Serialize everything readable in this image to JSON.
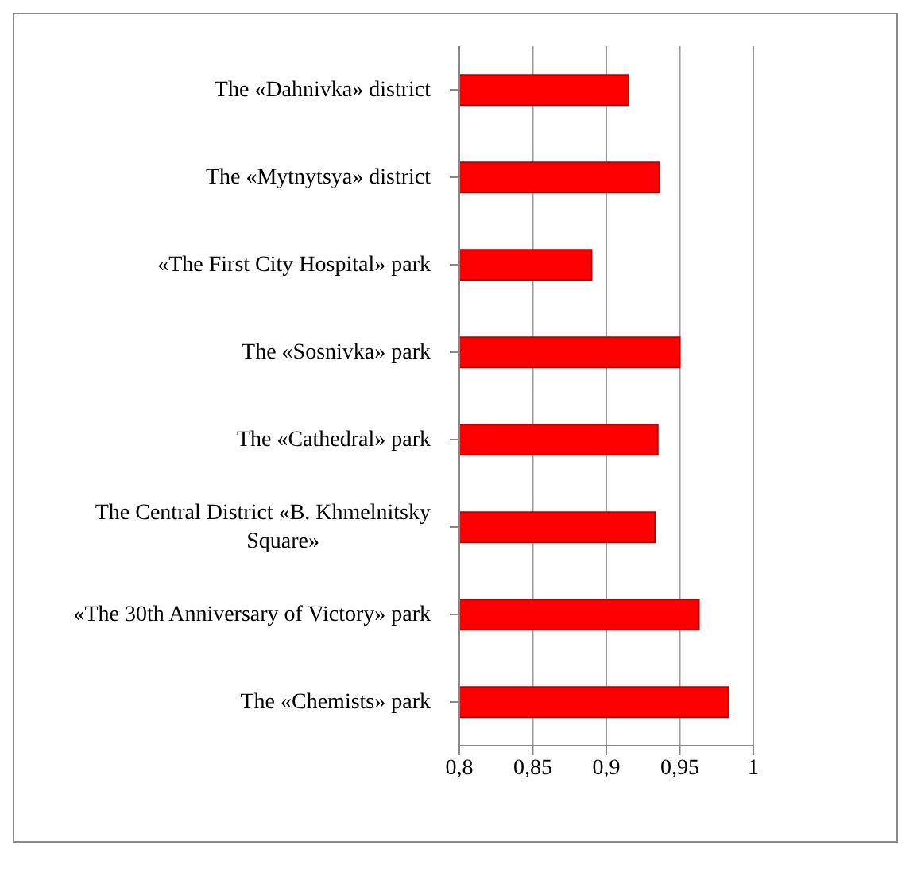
{
  "chart_data": {
    "type": "bar",
    "orientation": "horizontal",
    "categories": [
      "The «Dahnivka» district",
      "The «Mytnytsya» district",
      "«The First City Hospital» park",
      "The «Sosnivka» park",
      "The «Cathedral» park",
      "The Central District  «B. Khmelnitsky Square»",
      "«The 30th Anniversary of Victory» park",
      "The «Chemists» park"
    ],
    "values": [
      0.915,
      0.936,
      0.89,
      0.95,
      0.935,
      0.933,
      0.963,
      0.983
    ],
    "color": "#ff0000",
    "xlim": [
      0.8,
      1
    ],
    "xticks": [
      {
        "value": 0.8,
        "label": "0,8"
      },
      {
        "value": 0.85,
        "label": "0,85"
      },
      {
        "value": 0.9,
        "label": "0,9"
      },
      {
        "value": 0.95,
        "label": "0,95"
      },
      {
        "value": 1,
        "label": "1"
      }
    ],
    "grid": "x",
    "legend": false
  }
}
